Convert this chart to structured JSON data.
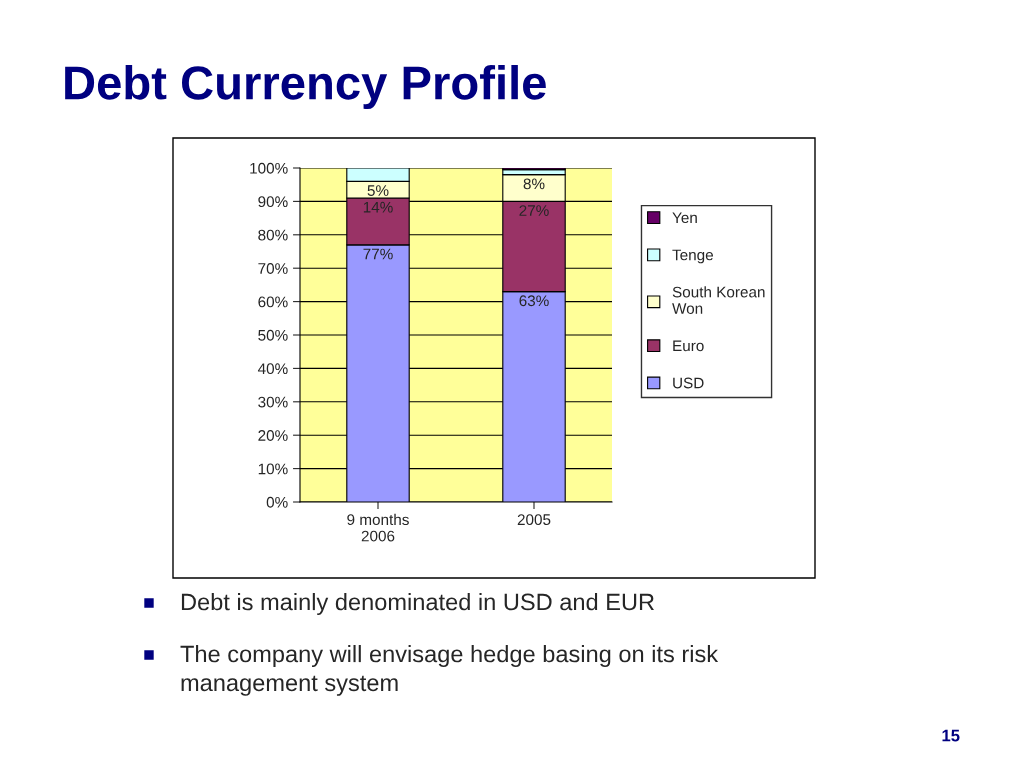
{
  "chart_data": {
    "type": "bar",
    "title": "Debt Currency Profile",
    "stacked": true,
    "categories": [
      "9 months\n2006",
      "2005"
    ],
    "series": [
      {
        "name": "USD",
        "color": "#9999ff",
        "values": [
          77,
          63
        ],
        "value_labels": [
          "77%",
          "63%"
        ]
      },
      {
        "name": "Euro",
        "color": "#993366",
        "values": [
          14,
          27
        ],
        "value_labels": [
          "14%",
          "27%"
        ]
      },
      {
        "name": "South Korean\nWon",
        "color": "#ffffcc",
        "values": [
          5,
          8
        ],
        "value_labels": [
          "5%",
          "8%"
        ]
      },
      {
        "name": "Tenge",
        "color": "#ccffff",
        "values": [
          4,
          1.5
        ],
        "value_labels": [
          null,
          null
        ]
      },
      {
        "name": "Yen",
        "color": "#660066",
        "values": [
          null,
          0.5
        ],
        "value_labels": [
          null,
          null
        ]
      }
    ],
    "ylim": [
      0,
      100
    ],
    "yticks": [
      {
        "value": 0,
        "label": "0%"
      },
      {
        "value": 10,
        "label": "10%"
      },
      {
        "value": 20,
        "label": "20%"
      },
      {
        "value": 30,
        "label": "30%"
      },
      {
        "value": 40,
        "label": "40%"
      },
      {
        "value": 50,
        "label": "50%"
      },
      {
        "value": 60,
        "label": "60%"
      },
      {
        "value": 70,
        "label": "70%"
      },
      {
        "value": 80,
        "label": "80%"
      },
      {
        "value": 90,
        "label": "90%"
      },
      {
        "value": 100,
        "label": "100%"
      }
    ],
    "grid": "y",
    "legend": "right",
    "annotations": [
      "Debt is mainly denominated in USD and EUR",
      "The company will envisage hedge basing on its risk\nmanagement system",
      "15"
    ]
  }
}
